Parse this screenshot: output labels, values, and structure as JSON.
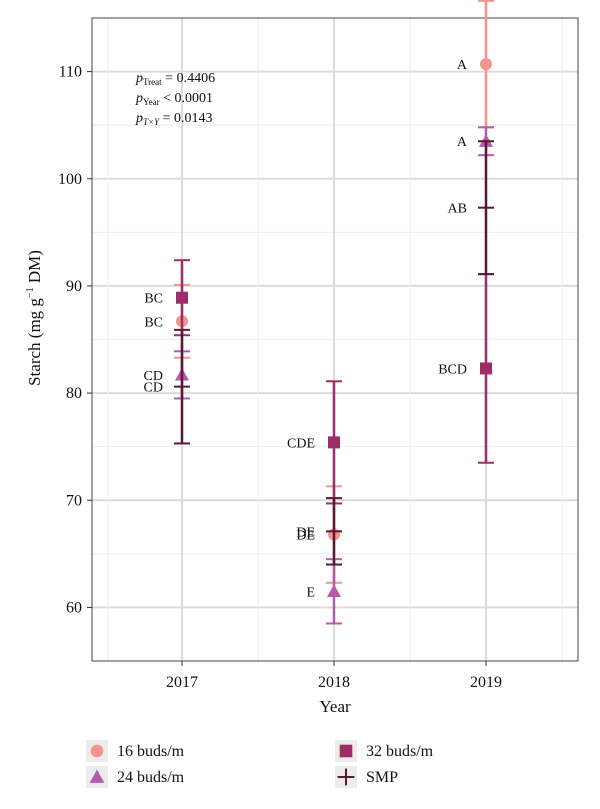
{
  "chart_data": {
    "type": "scatter",
    "xlabel": "Year",
    "ylabel": "Starch (mg g⁻¹ DM)",
    "ylabel_main": "Starch (mg g",
    "ylabel_sup": "−1",
    "ylabel_tail": " DM)",
    "categories": [
      "2017",
      "2018",
      "2019"
    ],
    "ylim": [
      55,
      115
    ],
    "yticks": [
      60,
      70,
      80,
      90,
      100,
      110
    ],
    "grid": true,
    "legend_position": "bottom",
    "series": [
      {
        "name": "16 buds/m",
        "marker": "circle",
        "color": "#f4948c",
        "points": [
          {
            "x": "2017",
            "y": 86.7,
            "err": 3.4,
            "label": "BC"
          },
          {
            "x": "2018",
            "y": 66.8,
            "err": 4.5,
            "label": "DE"
          },
          {
            "x": "2019",
            "y": 110.7,
            "err": 5.9,
            "label": "A"
          }
        ]
      },
      {
        "name": "24 buds/m",
        "marker": "triangle",
        "color": "#b45aa8",
        "points": [
          {
            "x": "2017",
            "y": 81.7,
            "err": 2.2,
            "label": "CD"
          },
          {
            "x": "2018",
            "y": 61.5,
            "err": 3.0,
            "label": "E"
          },
          {
            "x": "2019",
            "y": 103.5,
            "err": 1.3,
            "label": "A"
          }
        ]
      },
      {
        "name": "32 buds/m",
        "marker": "square",
        "color": "#9b2e66",
        "points": [
          {
            "x": "2017",
            "y": 88.9,
            "err": 3.5,
            "label": "BC"
          },
          {
            "x": "2018",
            "y": 75.4,
            "err": 5.7,
            "label": "CDE"
          },
          {
            "x": "2019",
            "y": 82.3,
            "err": 8.8,
            "label": "BCD"
          }
        ]
      },
      {
        "name": "SMP",
        "marker": "plus",
        "color": "#5a1838",
        "points": [
          {
            "x": "2017",
            "y": 80.6,
            "err": 5.3,
            "label": "CD"
          },
          {
            "x": "2018",
            "y": 67.1,
            "err": 3.1,
            "label": "DE"
          },
          {
            "x": "2019",
            "y": 97.3,
            "err": 6.2,
            "label": "AB"
          }
        ]
      }
    ],
    "annotations": [
      {
        "p": "p",
        "sub": "Treat",
        "rel": " = 0.4406"
      },
      {
        "p": "p",
        "sub": "Year",
        "rel": " < 0.0001"
      },
      {
        "p": "p",
        "sub": "T×Y",
        "rel": " = 0.0143"
      }
    ]
  }
}
